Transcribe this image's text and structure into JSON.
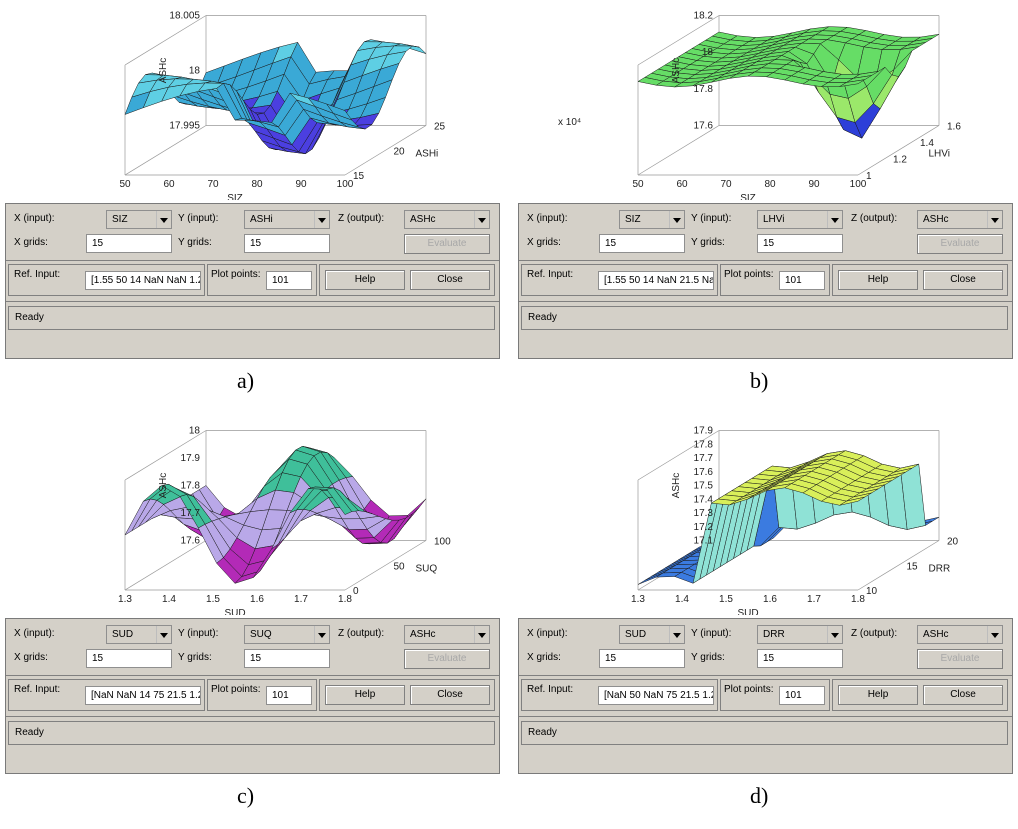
{
  "panels": [
    {
      "caption": "a)",
      "x_input_label": "X (input):",
      "x_input_value": "SIZ",
      "y_input_label": "Y (input):",
      "y_input_value": "ASHi",
      "z_output_label": "Z (output):",
      "z_output_value": "ASHc",
      "x_grids_label": "X grids:",
      "x_grids_value": "15",
      "y_grids_label": "Y grids:",
      "y_grids_value": "15",
      "evaluate": "Evaluate",
      "ref_input_label": "Ref. Input:",
      "ref_input_value": "[1.55 50 14 NaN NaN 1.22",
      "plot_points_label": "Plot points:",
      "plot_points_value": "101",
      "help": "Help",
      "close": "Close",
      "status": "Ready",
      "plot": {
        "zlabel": "ASHc",
        "xlabel": "SIZ",
        "ylabel": "ASHi",
        "zticks": [
          "18.005",
          "18",
          "17.995"
        ],
        "xticks": [
          "50",
          "60",
          "70",
          "80",
          "90",
          "100"
        ],
        "yticks": [
          "15",
          "20",
          "25"
        ],
        "colors": [
          "#5ecfe4",
          "#4b3fe0",
          "#3aa9d6"
        ]
      }
    },
    {
      "caption": "b)",
      "x_input_label": "X (input):",
      "x_input_value": "SIZ",
      "y_input_label": "Y (input):",
      "y_input_value": "LHVi",
      "z_output_label": "Z (output):",
      "z_output_value": "ASHc",
      "x_grids_label": "X grids:",
      "x_grids_value": "15",
      "y_grids_label": "Y grids:",
      "y_grids_value": "15",
      "evaluate": "Evaluate",
      "ref_input_label": "Ref. Input:",
      "ref_input_value": "[1.55 50 14 NaN 21.5 NaN",
      "plot_points_label": "Plot points:",
      "plot_points_value": "101",
      "help": "Help",
      "close": "Close",
      "status": "Ready",
      "plot": {
        "zlabel": "ASHc",
        "xlabel": "SIZ",
        "ylabel": "LHVi",
        "yexp": "x 10⁴",
        "zticks": [
          "18.2",
          "18",
          "17.8",
          "17.6"
        ],
        "xticks": [
          "50",
          "60",
          "70",
          "80",
          "90",
          "100"
        ],
        "yticks": [
          "1",
          "1.2",
          "1.4",
          "1.6"
        ],
        "colors": [
          "#66dd66",
          "#2d3fd8",
          "#9be86a"
        ]
      }
    },
    {
      "caption": "c)",
      "x_input_label": "X (input):",
      "x_input_value": "SUD",
      "y_input_label": "Y (input):",
      "y_input_value": "SUQ",
      "z_output_label": "Z (output):",
      "z_output_value": "ASHc",
      "x_grids_label": "X grids:",
      "x_grids_value": "15",
      "y_grids_label": "Y grids:",
      "y_grids_value": "15",
      "evaluate": "Evaluate",
      "ref_input_label": "Ref. Input:",
      "ref_input_value": "[NaN NaN 14 75 21.5 1.22",
      "plot_points_label": "Plot points:",
      "plot_points_value": "101",
      "help": "Help",
      "close": "Close",
      "status": "Ready",
      "plot": {
        "zlabel": "ASHc",
        "xlabel": "SUD",
        "ylabel": "SUQ",
        "zticks": [
          "18",
          "17.9",
          "17.8",
          "17.7",
          "17.6"
        ],
        "xticks": [
          "1.3",
          "1.4",
          "1.5",
          "1.6",
          "1.7",
          "1.8"
        ],
        "yticks": [
          "0",
          "50",
          "100"
        ],
        "colors": [
          "#3fbf9a",
          "#b32ab7",
          "#b9a8e8"
        ]
      }
    },
    {
      "caption": "d)",
      "x_input_label": "X (input):",
      "x_input_value": "SUD",
      "y_input_label": "Y (input):",
      "y_input_value": "DRR",
      "z_output_label": "Z (output):",
      "z_output_value": "ASHc",
      "x_grids_label": "X grids:",
      "x_grids_value": "15",
      "y_grids_label": "Y grids:",
      "y_grids_value": "15",
      "evaluate": "Evaluate",
      "ref_input_label": "Ref. Input:",
      "ref_input_value": "[NaN 50 NaN 75 21.5 1.22",
      "plot_points_label": "Plot points:",
      "plot_points_value": "101",
      "help": "Help",
      "close": "Close",
      "status": "Ready",
      "plot": {
        "zlabel": "ASHc",
        "xlabel": "SUD",
        "ylabel": "DRR",
        "zticks": [
          "17.9",
          "17.8",
          "17.7",
          "17.6",
          "17.5",
          "17.4",
          "17.3",
          "17.2",
          "17.1"
        ],
        "xticks": [
          "1.3",
          "1.4",
          "1.5",
          "1.6",
          "1.7",
          "1.8"
        ],
        "yticks": [
          "10",
          "15",
          "20"
        ],
        "colors": [
          "#d9ef5a",
          "#3b7be0",
          "#8fe2d6"
        ]
      }
    }
  ]
}
